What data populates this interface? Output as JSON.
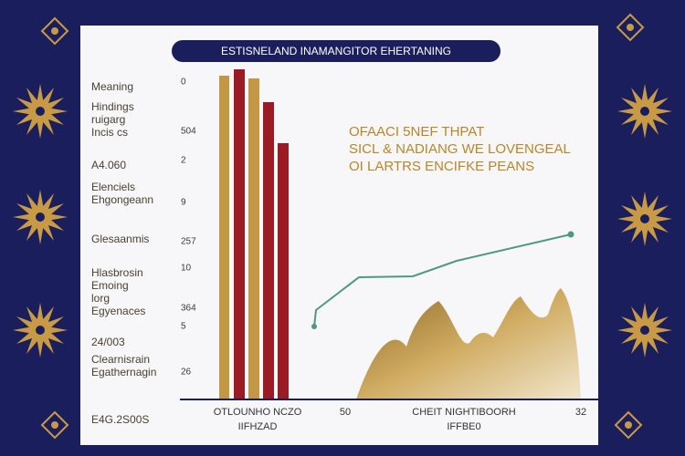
{
  "header": {
    "title": "ESTISNELAND INAMANGITOR EHERTANING"
  },
  "left_labels": [
    [
      "Meaning"
    ],
    [
      "Hindings",
      "ruigarg",
      "Incis cs"
    ],
    [
      "A4.060"
    ],
    [
      "Elenciels",
      "Ehgongeann"
    ],
    [
      "Glesaanmis"
    ],
    [
      "Hlasbrosin",
      "Emoing",
      "lorg",
      "Egyenaces"
    ],
    [
      "24/003"
    ],
    [
      "Clearnisrain",
      "Egathernagin"
    ],
    [
      "E4G.2S00S"
    ]
  ],
  "axis_labels": [
    "0",
    "504",
    "2",
    "9",
    "257",
    "10",
    "364",
    "5",
    "26"
  ],
  "annotation": [
    "OFAACI 5NEF THPAT",
    "SICL & NADIANG WE LOVENGEAL",
    "OI LARTRS ENCIFKE PEANS"
  ],
  "footer": {
    "left": [
      "OTLOUNHO NCZO",
      "IIFHZAD"
    ],
    "mid_number": "50",
    "center": [
      "CHEIT NIGHTIBOORH",
      "IFFBE0"
    ],
    "right_number": "32"
  }
}
